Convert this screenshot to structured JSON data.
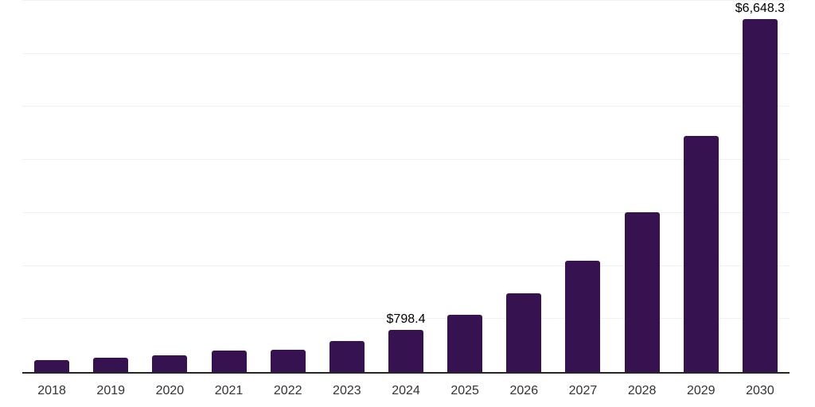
{
  "chart_data": {
    "type": "bar",
    "title": "",
    "xlabel": "",
    "ylabel": "",
    "categories": [
      "2018",
      "2019",
      "2020",
      "2021",
      "2022",
      "2023",
      "2024",
      "2025",
      "2026",
      "2027",
      "2028",
      "2029",
      "2030"
    ],
    "values": [
      225,
      277,
      313,
      405,
      425,
      585,
      798.4,
      1085,
      1490,
      2100,
      3010,
      4445,
      6648.3
    ],
    "point_labels": [
      null,
      null,
      null,
      null,
      null,
      null,
      "$798.4",
      null,
      null,
      null,
      null,
      null,
      "$6,648.3"
    ],
    "ylim": [
      0,
      7000
    ],
    "gridline_interval": 1000,
    "grid": "horizontal",
    "legend_position": "none"
  },
  "style": {
    "bar_color": "#371250",
    "axis_line_color": "#262626",
    "gridline_color": "#f2f2f2",
    "tick_label_color": "#333333",
    "data_label_color": "#000000",
    "background_color": "#ffffff"
  }
}
